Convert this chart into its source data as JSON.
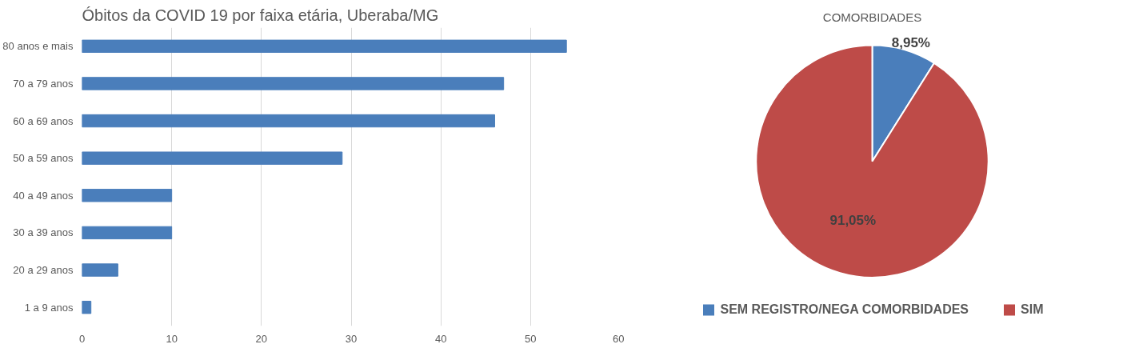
{
  "chart_data": [
    {
      "type": "bar",
      "title": "Óbitos da COVID 19 por faixa etária, Uberaba/MG",
      "orientation": "horizontal",
      "categories": [
        "80 anos e mais",
        "70 a 79 anos",
        "60 a 69 anos",
        "50 a 59 anos",
        "40 a 49 anos",
        "30 a 39 anos",
        "20 a 29 anos",
        "1 a 9 anos"
      ],
      "values": [
        54,
        47,
        46,
        29,
        10,
        10,
        4,
        1
      ],
      "color": "#4a7ebb",
      "xlim": [
        0,
        60
      ],
      "xticks": [
        0,
        10,
        20,
        30,
        40,
        50,
        60
      ],
      "grid": "x"
    },
    {
      "type": "pie",
      "title": "COMORBIDADES",
      "categories": [
        "SEM REGISTRO/NEGA COMORBIDADES",
        "SIM"
      ],
      "values": [
        8.95,
        91.05
      ],
      "colors": [
        "#4a7ebb",
        "#be4b48"
      ],
      "value_labels": [
        "8,95%",
        "91,05%"
      ],
      "legend": "bottom"
    }
  ]
}
